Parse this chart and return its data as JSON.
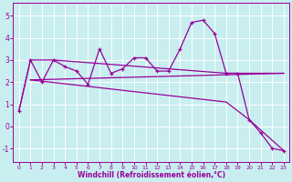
{
  "xlabel": "Windchill (Refroidissement éolien,°C)",
  "background_color": "#c8eef0",
  "grid_color": "#b0d8dc",
  "line_color": "#990099",
  "xlim": [
    -0.5,
    23.5
  ],
  "ylim": [
    -1.6,
    5.6
  ],
  "yticks": [
    -1,
    0,
    1,
    2,
    3,
    4,
    5
  ],
  "xticks": [
    0,
    1,
    2,
    3,
    4,
    5,
    6,
    7,
    8,
    9,
    10,
    11,
    12,
    13,
    14,
    15,
    16,
    17,
    18,
    19,
    20,
    21,
    22,
    23
  ],
  "series1_x": [
    0,
    1,
    2,
    3,
    4,
    5,
    6,
    7,
    8,
    9,
    10,
    11,
    12,
    13,
    14,
    15,
    16,
    17,
    18,
    19,
    20,
    21,
    22,
    23
  ],
  "series1_y": [
    0.7,
    3.0,
    2.0,
    3.0,
    2.7,
    2.5,
    1.9,
    3.5,
    2.4,
    2.6,
    3.1,
    3.1,
    2.5,
    2.5,
    3.5,
    4.7,
    4.8,
    4.2,
    2.4,
    2.4,
    0.3,
    -0.3,
    -1.0,
    -1.1
  ],
  "series2_x": [
    0,
    1,
    3,
    18,
    23
  ],
  "series2_y": [
    0.7,
    3.0,
    3.0,
    2.4,
    2.4
  ],
  "series3_x": [
    1,
    23
  ],
  "series3_y": [
    2.1,
    2.4
  ],
  "series4_x": [
    1,
    18,
    20,
    23
  ],
  "series4_y": [
    2.1,
    1.1,
    0.3,
    -1.1
  ]
}
